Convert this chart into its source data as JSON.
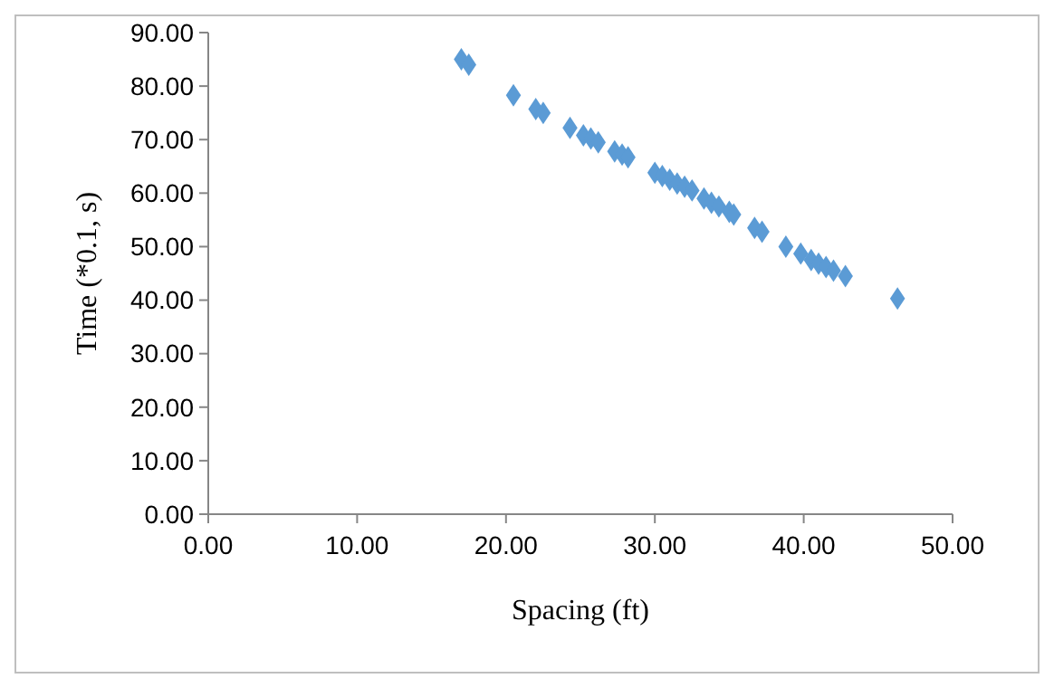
{
  "chart_data": {
    "type": "scatter",
    "xlabel": "Spacing (ft)",
    "ylabel": "Time (*0.1, s)",
    "marker": "diamond",
    "xlim": [
      0,
      50
    ],
    "xticks": [
      {
        "value": 0,
        "label": "0.00"
      },
      {
        "value": 10,
        "label": "10.00"
      },
      {
        "value": 20,
        "label": "20.00"
      },
      {
        "value": 30,
        "label": "30.00"
      },
      {
        "value": 40,
        "label": "40.00"
      },
      {
        "value": 50,
        "label": "50.00"
      }
    ],
    "ylim": [
      0,
      90
    ],
    "yticks": [
      {
        "value": 0,
        "label": "0.00"
      },
      {
        "value": 10,
        "label": "10.00"
      },
      {
        "value": 20,
        "label": "20.00"
      },
      {
        "value": 30,
        "label": "30.00"
      },
      {
        "value": 40,
        "label": "40.00"
      },
      {
        "value": 50,
        "label": "50.00"
      },
      {
        "value": 60,
        "label": "60.00"
      },
      {
        "value": 70,
        "label": "70.00"
      },
      {
        "value": 80,
        "label": "80.00"
      },
      {
        "value": 90,
        "label": "90.00"
      }
    ],
    "series": [
      {
        "color": "#5b9bd5",
        "x": [
          17,
          17.5,
          20.5,
          22,
          22.5,
          24.3,
          25.2,
          25.7,
          26.2,
          27.3,
          27.8,
          28.2,
          30,
          30.5,
          31,
          31.5,
          32,
          32.5,
          33.3,
          33.8,
          34.3,
          35,
          35.3,
          36.7,
          37.2,
          38.8,
          39.8,
          40.5,
          41,
          41.5,
          42,
          42.8,
          46.3
        ],
        "values": [
          85,
          84,
          78.3,
          75.7,
          75,
          72.2,
          70.8,
          70.2,
          69.5,
          67.8,
          67.2,
          66.7,
          63.8,
          63.2,
          62.5,
          61.8,
          61.2,
          60.5,
          59,
          58.2,
          57.5,
          56.5,
          56,
          53.5,
          52.8,
          50,
          48.7,
          47.5,
          46.8,
          46.2,
          45.5,
          44.5,
          40.3
        ]
      }
    ]
  }
}
